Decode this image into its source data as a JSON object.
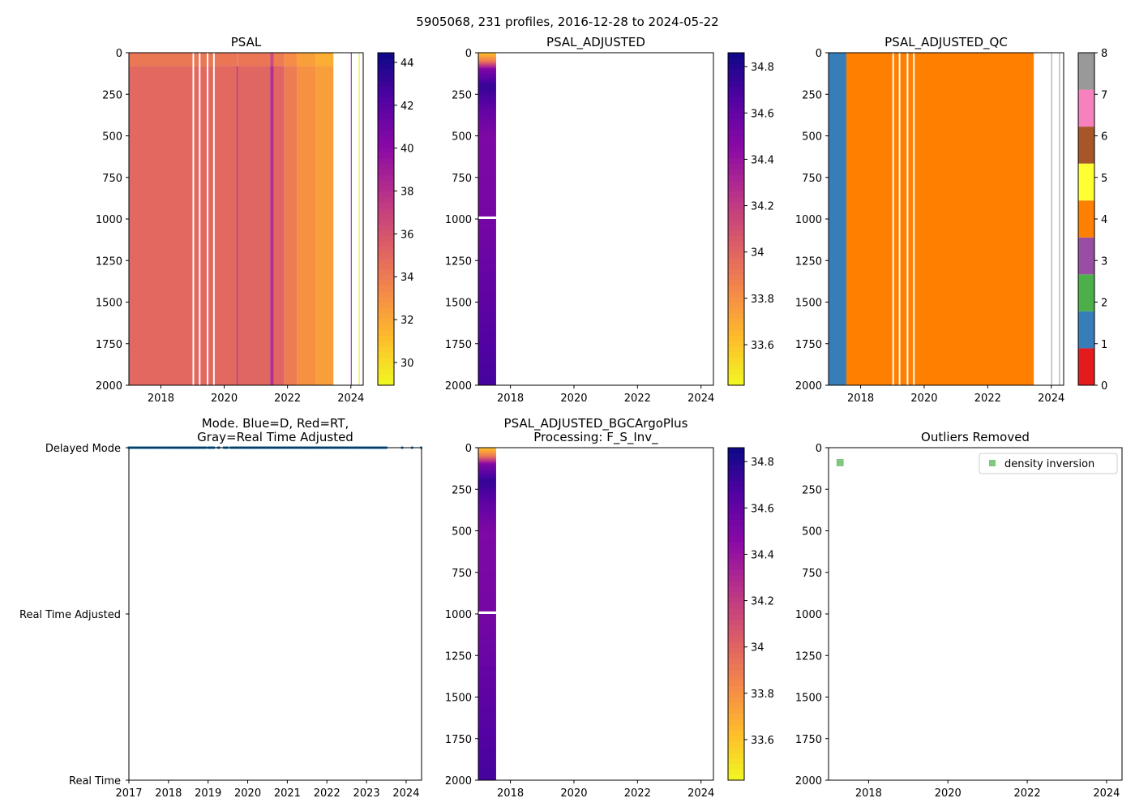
{
  "suptitle": "5905068, 231 profiles, 2016-12-28 to 2024-05-22",
  "colors": {
    "qc": [
      "#e41a1c",
      "#377eb8",
      "#4daf4a",
      "#984ea3",
      "#ff7f00",
      "#ffff33",
      "#a65628",
      "#f781bf",
      "#999999"
    ],
    "mode_dot": "#1f77b4",
    "outlier": "#7fc97f"
  },
  "chart_data": [
    {
      "id": "psal",
      "type": "heatmap",
      "title": "PSAL",
      "xlim": [
        2016.99,
        2024.39
      ],
      "ylim": [
        2000,
        0
      ],
      "xticks": [
        2018,
        2020,
        2022,
        2024
      ],
      "yticks": [
        0,
        250,
        500,
        750,
        1000,
        1250,
        1500,
        1750,
        2000
      ],
      "colormap": "plasma_r",
      "clim": [
        28.94,
        44.45
      ],
      "cbar_ticks": [
        30,
        32,
        34,
        36,
        38,
        40,
        42,
        44
      ],
      "columns": [
        {
          "x0": 2016.99,
          "x1": 2019.0,
          "surface": 34.2,
          "deep": 35.0
        },
        {
          "x0": 2019.05,
          "x1": 2019.2,
          "surface": 34.2,
          "deep": 35.0
        },
        {
          "x0": 2019.25,
          "x1": 2019.45,
          "surface": 34.2,
          "deep": 35.0
        },
        {
          "x0": 2019.5,
          "x1": 2019.65,
          "surface": 34.2,
          "deep": 35.0
        },
        {
          "x0": 2019.7,
          "x1": 2020.4,
          "surface": 34.3,
          "deep": 35.0
        },
        {
          "x0": 2020.4,
          "x1": 2020.43,
          "surface": 34.5,
          "deep": 39.5
        },
        {
          "x0": 2020.43,
          "x1": 2021.45,
          "surface": 34.3,
          "deep": 35.1
        },
        {
          "x0": 2021.45,
          "x1": 2021.56,
          "surface": 36.5,
          "deep": 38.0
        },
        {
          "x0": 2021.56,
          "x1": 2021.9,
          "surface": 34.0,
          "deep": 35.2
        },
        {
          "x0": 2021.9,
          "x1": 2022.3,
          "surface": 33.2,
          "deep": 34.0
        },
        {
          "x0": 2022.3,
          "x1": 2022.9,
          "surface": 32.4,
          "deep": 33.0
        },
        {
          "x0": 2022.9,
          "x1": 2023.45,
          "surface": 31.8,
          "deep": 32.4
        },
        {
          "x0": 2024.0,
          "x1": 2024.02,
          "surface": 40.0,
          "deep": 40.0
        },
        {
          "x0": 2024.25,
          "x1": 2024.27,
          "surface": 30.0,
          "deep": 30.0
        }
      ]
    },
    {
      "id": "psal_adj",
      "type": "heatmap",
      "title": "PSAL_ADJUSTED",
      "xlim": [
        2016.99,
        2024.39
      ],
      "ylim": [
        2000,
        0
      ],
      "xticks": [
        2018,
        2020,
        2022,
        2024
      ],
      "yticks": [
        0,
        250,
        500,
        750,
        1000,
        1250,
        1500,
        1750,
        2000
      ],
      "colormap": "plasma_r",
      "clim": [
        33.425,
        34.86
      ],
      "cbar_ticks": [
        33.6,
        33.8,
        34.0,
        34.2,
        34.4,
        34.6,
        34.8
      ],
      "profile": {
        "x0": 2016.99,
        "x1": 2017.55,
        "depths": [
          0,
          50,
          100,
          200,
          350,
          500,
          1000,
          1500,
          2000
        ],
        "values": [
          33.6,
          33.9,
          34.5,
          34.75,
          34.6,
          34.5,
          34.53,
          34.62,
          34.7
        ],
        "gap_depth": [
          985,
          1000
        ]
      }
    },
    {
      "id": "psal_adj_qc",
      "type": "heatmap",
      "title": "PSAL_ADJUSTED_QC",
      "xlim": [
        2016.99,
        2024.39
      ],
      "ylim": [
        2000,
        0
      ],
      "xticks": [
        2018,
        2020,
        2022,
        2024
      ],
      "yticks": [
        0,
        250,
        500,
        750,
        1000,
        1250,
        1500,
        1750,
        2000
      ],
      "colormap": "qc",
      "clim": [
        0,
        8
      ],
      "cbar_ticks": [
        0,
        1,
        2,
        3,
        4,
        5,
        6,
        7,
        8
      ],
      "columns": [
        {
          "x0": 2016.99,
          "x1": 2017.55,
          "qc": 1
        },
        {
          "x0": 2017.55,
          "x1": 2019.0,
          "qc": 4
        },
        {
          "x0": 2019.05,
          "x1": 2019.2,
          "qc": 4
        },
        {
          "x0": 2019.25,
          "x1": 2019.45,
          "qc": 4
        },
        {
          "x0": 2019.5,
          "x1": 2019.65,
          "qc": 4
        },
        {
          "x0": 2019.7,
          "x1": 2023.45,
          "qc": 4
        },
        {
          "x0": 2024.0,
          "x1": 2024.02,
          "qc": 8
        },
        {
          "x0": 2024.25,
          "x1": 2024.27,
          "qc": 8
        }
      ]
    },
    {
      "id": "mode",
      "type": "scatter",
      "title": "Mode. Blue=D, Red=RT,",
      "title2": "Gray=Real Time Adjusted",
      "xlim": [
        2017.0,
        2024.39
      ],
      "xticks": [
        2017,
        2018,
        2019,
        2020,
        2021,
        2022,
        2023,
        2024
      ],
      "ycategories": [
        "Real Time",
        "Real Time Adjusted",
        "Delayed Mode"
      ],
      "delayed_ranges": [
        [
          2016.99,
          2018.95
        ],
        [
          2019.0,
          2019.15
        ],
        [
          2019.25,
          2019.3
        ],
        [
          2019.4,
          2019.5
        ],
        [
          2019.57,
          2023.5
        ]
      ],
      "delayed_points": [
        2023.9,
        2024.15,
        2024.38
      ]
    },
    {
      "id": "bgc",
      "type": "heatmap",
      "title": "PSAL_ADJUSTED_BGCArgoPlus",
      "title2": "Processing: F_S_Inv_",
      "xlim": [
        2016.99,
        2024.39
      ],
      "ylim": [
        2000,
        0
      ],
      "xticks": [
        2018,
        2020,
        2022,
        2024
      ],
      "yticks": [
        0,
        250,
        500,
        750,
        1000,
        1250,
        1500,
        1750,
        2000
      ],
      "colormap": "plasma_r",
      "clim": [
        33.425,
        34.86
      ],
      "cbar_ticks": [
        33.6,
        33.8,
        34.0,
        34.2,
        34.4,
        34.6,
        34.8
      ],
      "profile": {
        "x0": 2016.99,
        "x1": 2017.55,
        "depths": [
          0,
          50,
          100,
          200,
          350,
          500,
          1000,
          1500,
          2000
        ],
        "values": [
          33.6,
          33.9,
          34.5,
          34.75,
          34.6,
          34.5,
          34.53,
          34.62,
          34.7
        ],
        "gap_depth": [
          985,
          1000
        ]
      }
    },
    {
      "id": "outliers",
      "type": "scatter",
      "title": "Outliers Removed",
      "xlim": [
        2016.99,
        2024.39
      ],
      "ylim": [
        2000,
        0
      ],
      "xticks": [
        2018,
        2020,
        2022,
        2024
      ],
      "yticks": [
        0,
        250,
        500,
        750,
        1000,
        1250,
        1500,
        1750,
        2000
      ],
      "legend": {
        "label": "density inversion",
        "placement": "top-right"
      },
      "points": [
        {
          "x": 2017.28,
          "y": 90
        }
      ]
    }
  ]
}
